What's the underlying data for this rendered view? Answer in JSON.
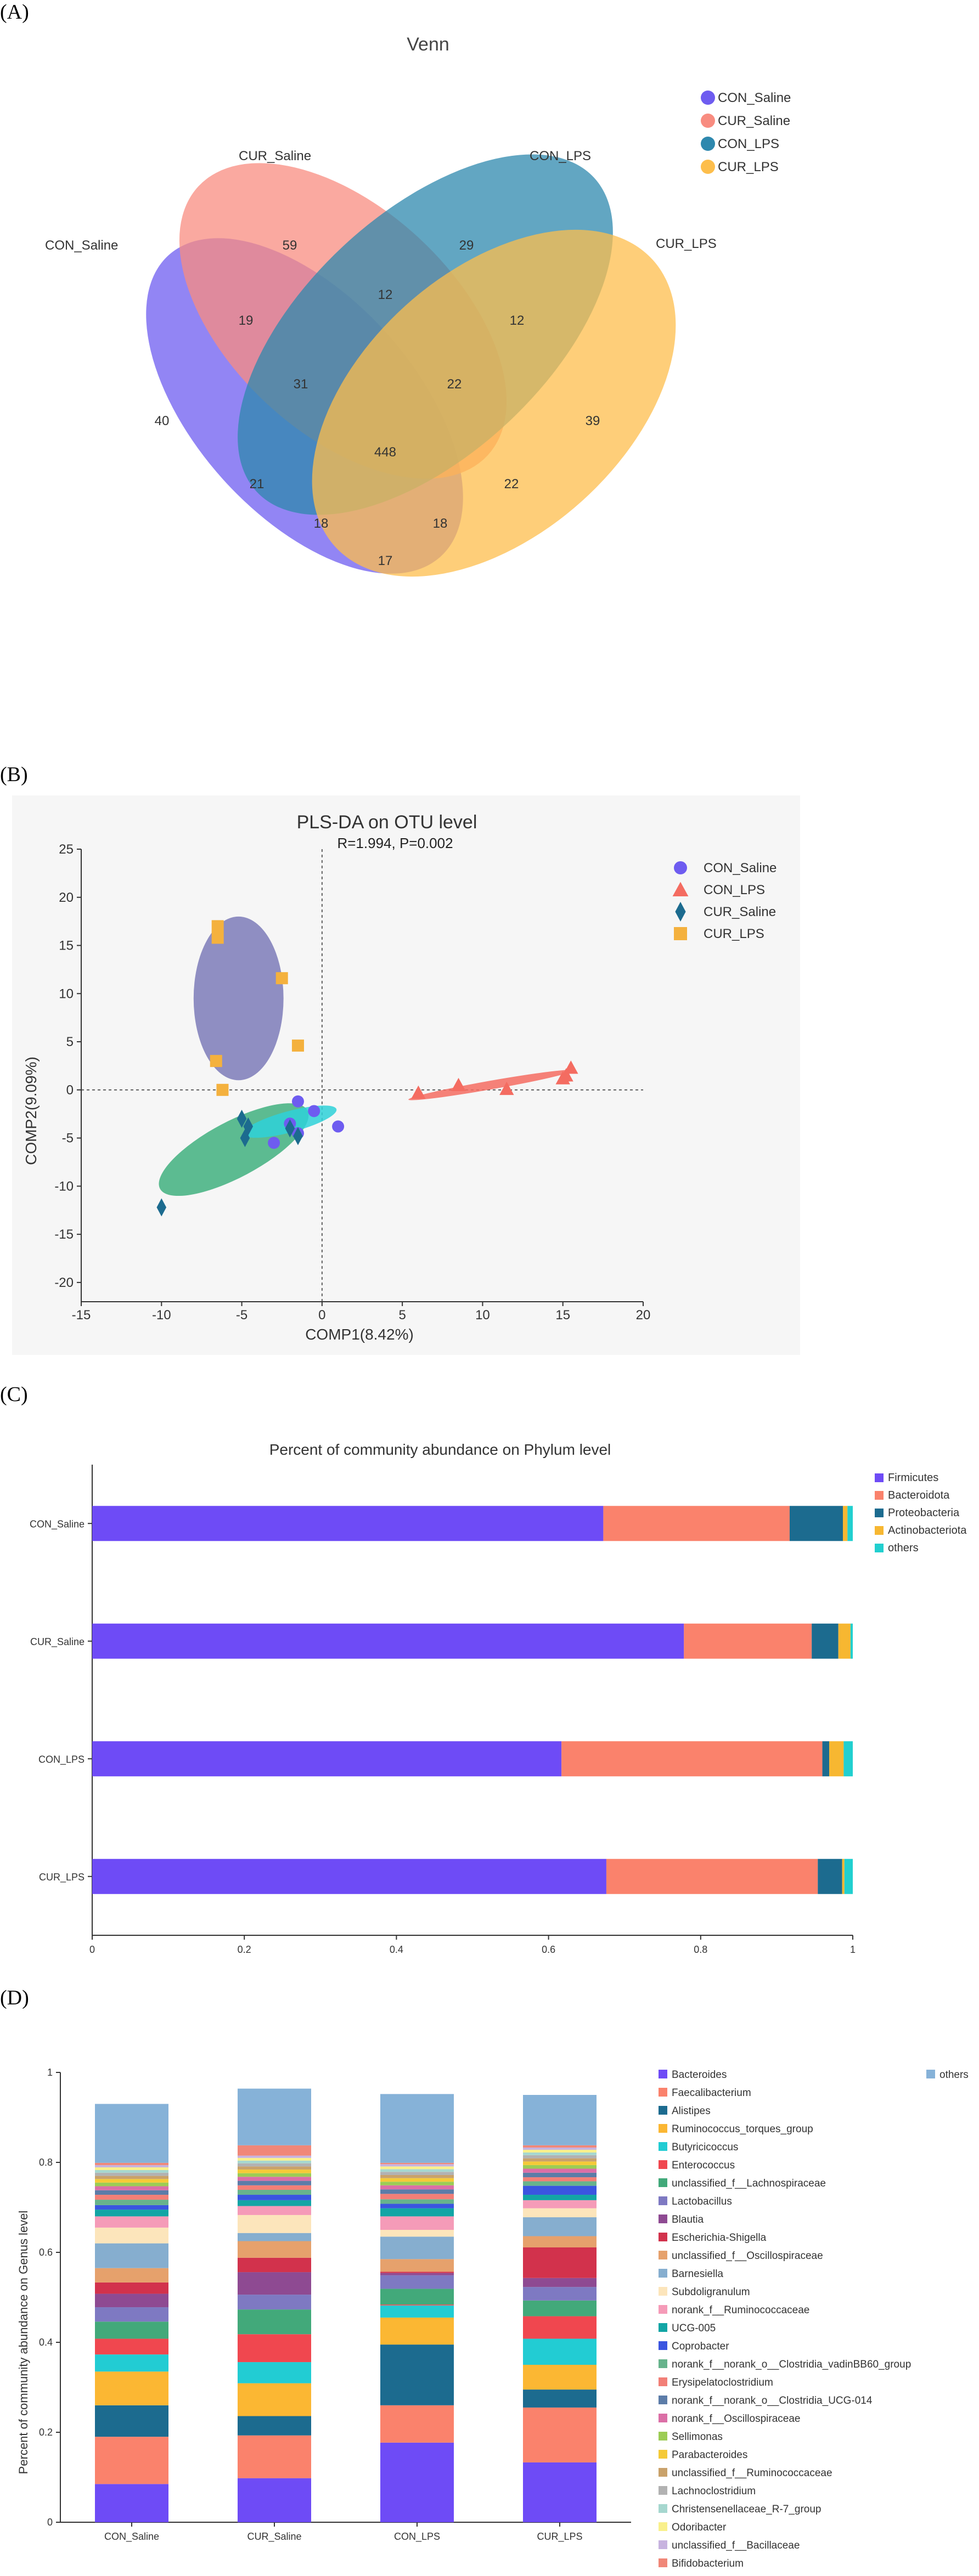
{
  "panels": {
    "a": "(A)",
    "b": "(B)",
    "c": "(C)",
    "d": "(D)"
  },
  "chart_data": [
    {
      "type": "venn",
      "title": "Venn",
      "sets": [
        {
          "name": "CON_Saline",
          "color": "#6E5CF0",
          "only": 40
        },
        {
          "name": "CUR_Saline",
          "color": "#F88C80",
          "only": 59
        },
        {
          "name": "CON_LPS",
          "color": "#2E88AE",
          "only": 29
        },
        {
          "name": "CUR_LPS",
          "color": "#FDBE4C",
          "only": 39
        }
      ],
      "set_labels": [
        "CON_Saline",
        "CUR_Saline",
        "CON_LPS",
        "CUR_LPS"
      ],
      "legend": [
        "CON_Saline",
        "CUR_Saline",
        "CON_LPS",
        "CUR_LPS"
      ],
      "region_counts": [
        "59",
        "29",
        "40",
        "39",
        "12",
        "19",
        "12",
        "31",
        "22",
        "448",
        "21",
        "22",
        "18",
        "18",
        "17"
      ]
    },
    {
      "type": "scatter",
      "title": "PLS-DA on OTU level",
      "subtitle": "R=1.994, P=0.002",
      "xlabel": "COMP1(8.42%)",
      "ylabel": "COMP2(9.09%)",
      "xlim": [
        -15,
        20
      ],
      "ylim": [
        -22,
        25
      ],
      "xticks": [
        -15,
        -10,
        -5,
        0,
        5,
        10,
        15,
        20
      ],
      "yticks": [
        -20,
        -15,
        -10,
        -5,
        0,
        5,
        10,
        15,
        20,
        25
      ],
      "series": [
        {
          "name": "CON_Saline",
          "marker": "circle",
          "color": "#6E5CF0",
          "points": [
            [
              -1.5,
              -1.2
            ],
            [
              -0.5,
              -2.2
            ],
            [
              1,
              -3.8
            ],
            [
              -2,
              -3.5
            ],
            [
              -3,
              -5.5
            ],
            [
              -1.5,
              -4.5
            ]
          ]
        },
        {
          "name": "CON_LPS",
          "marker": "triangle",
          "color": "#F46C61",
          "points": [
            [
              6,
              -0.3
            ],
            [
              8.5,
              0.5
            ],
            [
              11.5,
              0.1
            ],
            [
              15.5,
              2.3
            ],
            [
              15.2,
              1.5
            ],
            [
              15,
              1.2
            ]
          ]
        },
        {
          "name": "CUR_Saline",
          "marker": "diamond",
          "color": "#1C6B8F",
          "points": [
            [
              -10,
              -12.2
            ],
            [
              -5,
              -3
            ],
            [
              -4.6,
              -3.8
            ],
            [
              -4.8,
              -5
            ],
            [
              -2,
              -4
            ],
            [
              -1.5,
              -4.8
            ]
          ]
        },
        {
          "name": "CUR_LPS",
          "marker": "square",
          "color": "#F4B13E",
          "points": [
            [
              -6.5,
              17
            ],
            [
              -6.5,
              15.8
            ],
            [
              -2.5,
              11.6
            ],
            [
              -1.5,
              4.6
            ],
            [
              -6.6,
              3
            ],
            [
              -6.2,
              0
            ]
          ]
        }
      ],
      "ellipses": [
        {
          "group": "CUR_LPS",
          "color": "#7C7BB8",
          "cx": -5.2,
          "cy": 9.5,
          "rx": 2.8,
          "ry": 8.5,
          "angle": 0
        },
        {
          "group": "CUR_Saline",
          "color": "#41B07F",
          "cx": -5.5,
          "cy": -6.2,
          "rx": 5.2,
          "ry": 2.9,
          "angle": 28
        },
        {
          "group": "CON_Saline",
          "color": "#2ED1D8",
          "cx": -2.0,
          "cy": -3.3,
          "rx": 3.0,
          "ry": 1.1,
          "angle": 15
        },
        {
          "group": "CON_LPS",
          "color": "#F46C61",
          "cx": 10.5,
          "cy": 0.5,
          "rx": 5.2,
          "ry": 0.45,
          "angle": 10
        }
      ],
      "legend": [
        "CON_Saline",
        "CON_LPS",
        "CUR_Saline",
        "CUR_LPS"
      ]
    },
    {
      "type": "bar",
      "orientation": "horizontal",
      "stacked": true,
      "title": "Percent of community abundance on Phylum level",
      "categories": [
        "CON_Saline",
        "CUR_Saline",
        "CON_LPS",
        "CUR_LPS"
      ],
      "xlim": [
        0,
        1
      ],
      "xticks": [
        "0",
        "0.2",
        "0.4",
        "0.6",
        "0.8",
        "1"
      ],
      "series": [
        {
          "name": "Firmicutes",
          "color": "#6E4BF6",
          "values": [
            0.672,
            0.778,
            0.617,
            0.676
          ]
        },
        {
          "name": "Bacteroidota",
          "color": "#FA826C",
          "values": [
            0.245,
            0.168,
            0.343,
            0.278
          ]
        },
        {
          "name": "Proteobacteria",
          "color": "#1C6B8F",
          "values": [
            0.07,
            0.035,
            0.009,
            0.032
          ]
        },
        {
          "name": "Actinobacteriota",
          "color": "#F7B731",
          "values": [
            0.006,
            0.016,
            0.019,
            0.003
          ]
        },
        {
          "name": "others",
          "color": "#21CFCF",
          "values": [
            0.007,
            0.003,
            0.012,
            0.011
          ]
        }
      ]
    },
    {
      "type": "bar",
      "stacked": true,
      "ylabel": "Percent of community abundance on Genus level",
      "categories": [
        "CON_Saline",
        "CUR_Saline",
        "CON_LPS",
        "CUR_LPS"
      ],
      "ylim": [
        0,
        1
      ],
      "yticks": [
        "0",
        "0.2",
        "0.4",
        "0.6",
        "0.8",
        "1"
      ],
      "series": [
        {
          "name": "Bacteroides",
          "color": "#6E4BF6",
          "values": [
            0.085,
            0.098,
            0.177,
            0.133
          ]
        },
        {
          "name": "Faecalibacterium",
          "color": "#FA826C",
          "values": [
            0.105,
            0.095,
            0.083,
            0.122
          ]
        },
        {
          "name": "Alistipes",
          "color": "#1C6B8F",
          "values": [
            0.07,
            0.043,
            0.135,
            0.04
          ]
        },
        {
          "name": "Ruminococcus_torques_group",
          "color": "#FBB733",
          "values": [
            0.075,
            0.073,
            0.06,
            0.055
          ]
        },
        {
          "name": "Butyricicoccus",
          "color": "#22CCD3",
          "values": [
            0.038,
            0.047,
            0.027,
            0.058
          ]
        },
        {
          "name": "Enterococcus",
          "color": "#F0474F",
          "values": [
            0.035,
            0.062,
            0.002,
            0.05
          ]
        },
        {
          "name": "unclassified_f__Lachnospiraceae",
          "color": "#42A97A",
          "values": [
            0.038,
            0.055,
            0.035,
            0.035
          ]
        },
        {
          "name": "Lactobacillus",
          "color": "#7E79C2",
          "values": [
            0.032,
            0.033,
            0.03,
            0.03
          ]
        },
        {
          "name": "Blautia",
          "color": "#8E4A92",
          "values": [
            0.03,
            0.05,
            0.005,
            0.02
          ]
        },
        {
          "name": "Escherichia-Shigella",
          "color": "#D2324C",
          "values": [
            0.025,
            0.032,
            0.003,
            0.068
          ]
        },
        {
          "name": "unclassified_f__Oscillospiraceae",
          "color": "#E6A16C",
          "values": [
            0.032,
            0.037,
            0.028,
            0.025
          ]
        },
        {
          "name": "Barnesiella",
          "color": "#86AECF",
          "values": [
            0.055,
            0.018,
            0.05,
            0.042
          ]
        },
        {
          "name": "Subdoligranulum",
          "color": "#FCE5BB",
          "values": [
            0.035,
            0.04,
            0.015,
            0.02
          ]
        },
        {
          "name": "norank_f__Ruminococcaceae",
          "color": "#F59BB8",
          "values": [
            0.025,
            0.02,
            0.03,
            0.018
          ]
        },
        {
          "name": "UCG-005",
          "color": "#12A5A5",
          "values": [
            0.015,
            0.013,
            0.018,
            0.012
          ]
        },
        {
          "name": "Coprobacter",
          "color": "#3A55E0",
          "values": [
            0.01,
            0.012,
            0.01,
            0.02
          ]
        },
        {
          "name": "norank_f__norank_o__Clostridia_vadinBB60_group",
          "color": "#67B38C",
          "values": [
            0.012,
            0.011,
            0.01,
            0.01
          ]
        },
        {
          "name": "Erysipelatoclostridium",
          "color": "#F27F77",
          "values": [
            0.011,
            0.01,
            0.012,
            0.009
          ]
        },
        {
          "name": "norank_f__norank_o__Clostridia_UCG-014",
          "color": "#5C7CA8",
          "values": [
            0.01,
            0.01,
            0.01,
            0.01
          ]
        },
        {
          "name": "norank_f__Oscillospiraceae",
          "color": "#DB6FA6",
          "values": [
            0.009,
            0.009,
            0.009,
            0.009
          ]
        },
        {
          "name": "Sellimonas",
          "color": "#9CCC55",
          "values": [
            0.008,
            0.008,
            0.008,
            0.008
          ]
        },
        {
          "name": "Parabacteroides",
          "color": "#F5CA38",
          "values": [
            0.008,
            0.008,
            0.008,
            0.008
          ]
        },
        {
          "name": "unclassified_f__Ruminococcaceae",
          "color": "#C9A26B",
          "values": [
            0.007,
            0.007,
            0.007,
            0.007
          ]
        },
        {
          "name": "Lachnoclostridium",
          "color": "#B2B2B2",
          "values": [
            0.007,
            0.007,
            0.007,
            0.007
          ]
        },
        {
          "name": "Christensenellaceae_R-7_group",
          "color": "#A6D7CF",
          "values": [
            0.006,
            0.006,
            0.006,
            0.006
          ]
        },
        {
          "name": "Odoribacter",
          "color": "#F9F08C",
          "values": [
            0.006,
            0.006,
            0.006,
            0.006
          ]
        },
        {
          "name": "unclassified_f__Bacillaceae",
          "color": "#C7B3DF",
          "values": [
            0.005,
            0.005,
            0.005,
            0.005
          ]
        },
        {
          "name": "Bifidobacterium",
          "color": "#F08778",
          "values": [
            0.005,
            0.023,
            0.003,
            0.005
          ]
        },
        {
          "name": "others",
          "color": "#86B2D8",
          "values": [
            0.131,
            0.126,
            0.153,
            0.112
          ]
        }
      ]
    }
  ]
}
